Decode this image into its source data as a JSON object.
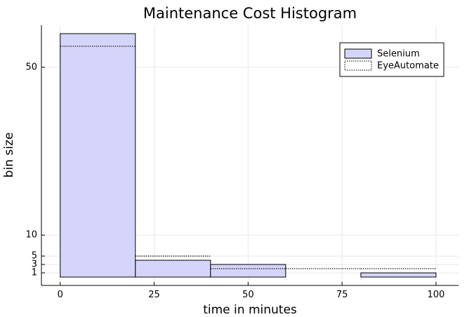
{
  "chart_data": {
    "type": "bar",
    "title": "Maintenance Cost Histogram",
    "xlabel": "time in minutes",
    "ylabel": "bin size",
    "bins": [
      [
        0,
        20
      ],
      [
        20,
        40
      ],
      [
        40,
        60
      ],
      [
        60,
        80
      ],
      [
        80,
        100
      ]
    ],
    "xlim": [
      -5,
      106
    ],
    "ylim": [
      -2,
      60
    ],
    "xticks": [
      0,
      25,
      50,
      75,
      100
    ],
    "yticks": [
      1,
      3,
      5,
      10,
      50
    ],
    "grid": true,
    "legend_position": "top-right",
    "series": [
      {
        "name": "Selenium",
        "style": "filled",
        "color": "#d5d5fb",
        "values": [
          58,
          4,
          3,
          0,
          1
        ]
      },
      {
        "name": "EyeAutomate",
        "style": "dotted-outline",
        "color": "#000000",
        "values": [
          55,
          5,
          2,
          2,
          2
        ]
      }
    ]
  }
}
